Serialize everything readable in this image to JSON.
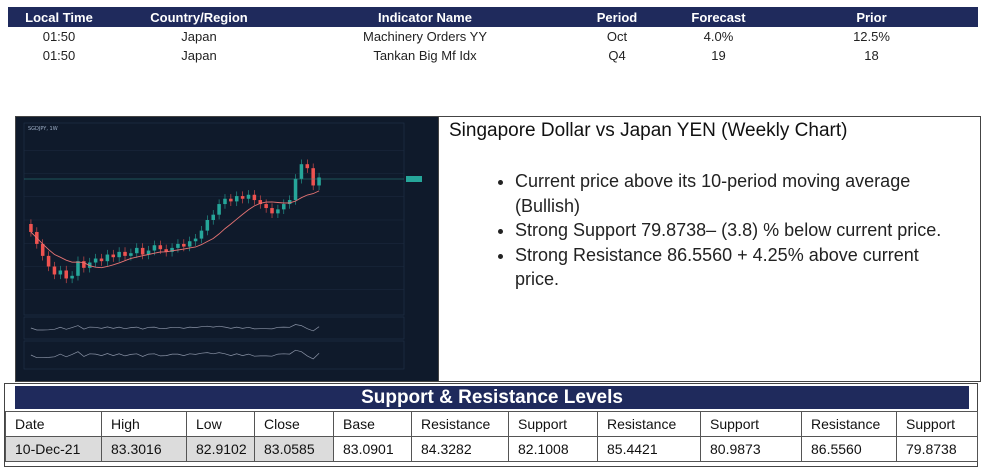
{
  "calendar": {
    "headers": [
      "Local Time",
      "Country/Region",
      "Indicator Name",
      "Period",
      "Forecast",
      "Prior"
    ],
    "rows": [
      {
        "time": "01:50",
        "country": "Japan",
        "indicator": "Machinery Orders YY",
        "period": "Oct",
        "forecast": "4.0%",
        "prior": "12.5%"
      },
      {
        "time": "01:50",
        "country": "Japan",
        "indicator": "Tankan Big Mf Idx",
        "period": "Q4",
        "forecast": "19",
        "prior": "18"
      }
    ]
  },
  "chart_panel": {
    "title": "Singapore Dollar vs Japan YEN (Weekly Chart)",
    "bullets": [
      "Current price above its 10-period moving average (Bullish)",
      "Strong Support 79.8738– (3.8) % below current price.",
      "Strong Resistance 86.5560 + 4.25% above current price."
    ],
    "chart_header": "SGDJPY, 1W",
    "colors": {
      "background": "#0f1a2b",
      "up": "#26a69a",
      "down": "#ef5350",
      "ma": "#e57373",
      "grid": "#1c2a40"
    }
  },
  "chart_data": {
    "type": "candlestick",
    "symbol": "SGDJPY, 1W",
    "close": [
      80.1,
      79.2,
      78.3,
      77.5,
      76.9,
      77.2,
      76.6,
      76.8,
      77.9,
      77.4,
      77.8,
      78.1,
      77.9,
      78.4,
      78.2,
      78.6,
      78.3,
      78.5,
      78.9,
      78.4,
      78.7,
      79.1,
      78.8,
      78.6,
      78.9,
      79.2,
      79.0,
      79.4,
      79.6,
      80.2,
      81.0,
      81.4,
      82.2,
      82.6,
      82.4,
      82.8,
      82.6,
      82.9,
      82.5,
      82.2,
      81.9,
      81.5,
      81.8,
      82.2,
      82.5,
      84.1,
      85.2,
      84.9,
      83.6,
      84.2
    ]
  },
  "sr_table": {
    "title": "Support & Resistance Levels",
    "headers": [
      "Date",
      "High",
      "Low",
      "Close",
      "Base",
      "Resistance",
      "Support",
      "Resistance",
      "Support",
      "Resistance",
      "Support"
    ],
    "values": [
      "10-Dec-21",
      "83.3016",
      "82.9102",
      "83.0585",
      "83.0901",
      "84.3282",
      "82.1008",
      "85.4421",
      "80.9873",
      "86.5560",
      "79.8738"
    ]
  }
}
